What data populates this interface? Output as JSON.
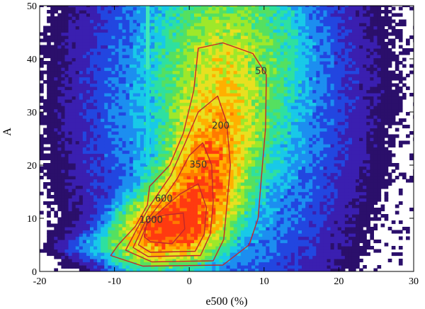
{
  "chart_data": {
    "type": "heatmap",
    "xlabel": "e500 (%)",
    "ylabel": "A",
    "xlim": [
      -20,
      30
    ],
    "ylim": [
      0,
      50
    ],
    "x_ticks": [
      -20,
      -10,
      0,
      10,
      20,
      30
    ],
    "y_ticks": [
      0,
      10,
      20,
      30,
      40,
      50
    ],
    "x_tick_labels": [
      "-20",
      "-10",
      "0",
      "10",
      "20",
      "30"
    ],
    "y_tick_labels": [
      "0",
      "10",
      "20",
      "30",
      "40",
      "50"
    ],
    "grid": false,
    "colormap": [
      "#2b0f6b",
      "#3a1fb0",
      "#2246e0",
      "#1c8ef0",
      "#18c9e8",
      "#2ee0a0",
      "#55e060",
      "#9ee82a",
      "#e8e020",
      "#ffb000",
      "#ff7a00",
      "#ff3a10"
    ],
    "contour_color": "#c0282a",
    "contour_levels": [
      {
        "label": "50",
        "x": 9.6,
        "y": 37.8
      },
      {
        "label": "200",
        "x": 4.2,
        "y": 27.5
      },
      {
        "label": "350",
        "x": 1.2,
        "y": 20.2
      },
      {
        "label": "600",
        "x": -3.4,
        "y": 13.8
      },
      {
        "label": "1000",
        "x": -5.1,
        "y": 9.8
      }
    ]
  }
}
